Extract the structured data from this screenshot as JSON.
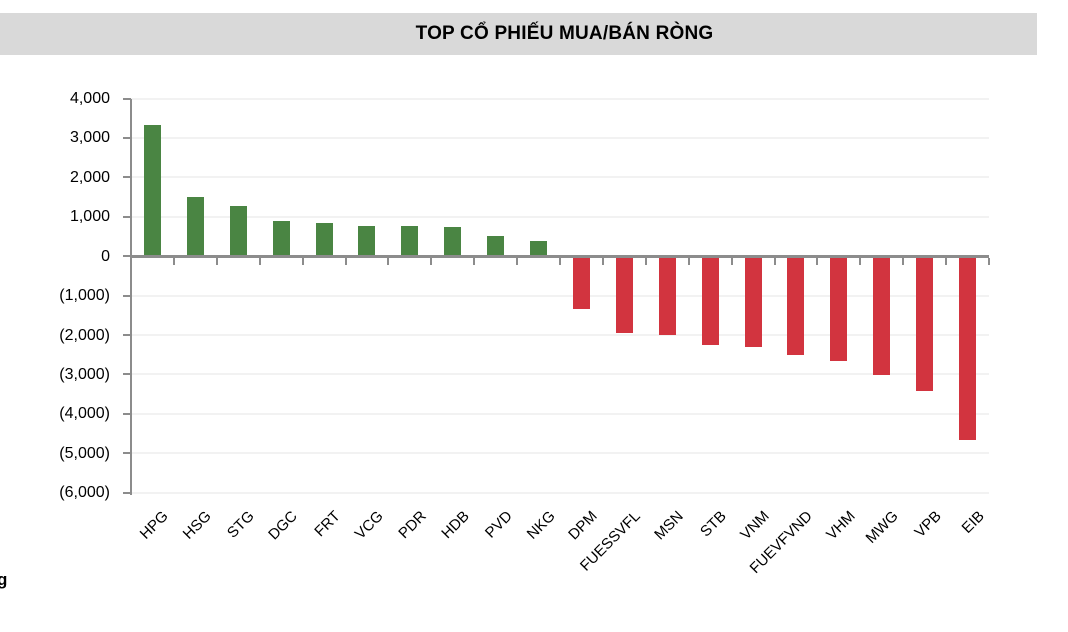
{
  "title": "TOP CỔ PHIẾU MUA/BÁN RÒNG",
  "footer_fragment": "g",
  "colors": {
    "positive_bar": "#4A8543",
    "negative_bar": "#D2343F",
    "title_band_bg": "#D9D9D9",
    "axis_line": "#8C8C8C",
    "gridline": "#F2F2F2",
    "text": "#000000"
  },
  "chart_data": {
    "type": "bar",
    "title": "TOP CỔ PHIẾU MUA/BÁN RÒNG",
    "xlabel": "",
    "ylabel": "",
    "categories": [
      "HPG",
      "HSG",
      "STG",
      "DGC",
      "FRT",
      "VCG",
      "PDR",
      "HDB",
      "PVD",
      "NKG",
      "DPM",
      "FUESSVFL",
      "MSN",
      "STB",
      "VNM",
      "FUEVFVND",
      "VHM",
      "MWG",
      "VPB",
      "EIB"
    ],
    "values": [
      3340,
      1510,
      1270,
      905,
      840,
      760,
      755,
      745,
      500,
      395,
      -1330,
      -1960,
      -2000,
      -2260,
      -2310,
      -2510,
      -2670,
      -3020,
      -3430,
      -4660
    ],
    "ylim": [
      -6000,
      4000
    ],
    "ytick_interval": 1000,
    "ytick_labels": [
      "4,000",
      "3,000",
      "2,000",
      "1,000",
      "0",
      "(1,000)",
      "(2,000)",
      "(3,000)",
      "(4,000)",
      "(5,000)",
      "(6,000)"
    ],
    "grid": true,
    "legend_position": "none",
    "positive_color": "#4A8543",
    "negative_color": "#D2343F",
    "xtick_rotation": 45
  }
}
